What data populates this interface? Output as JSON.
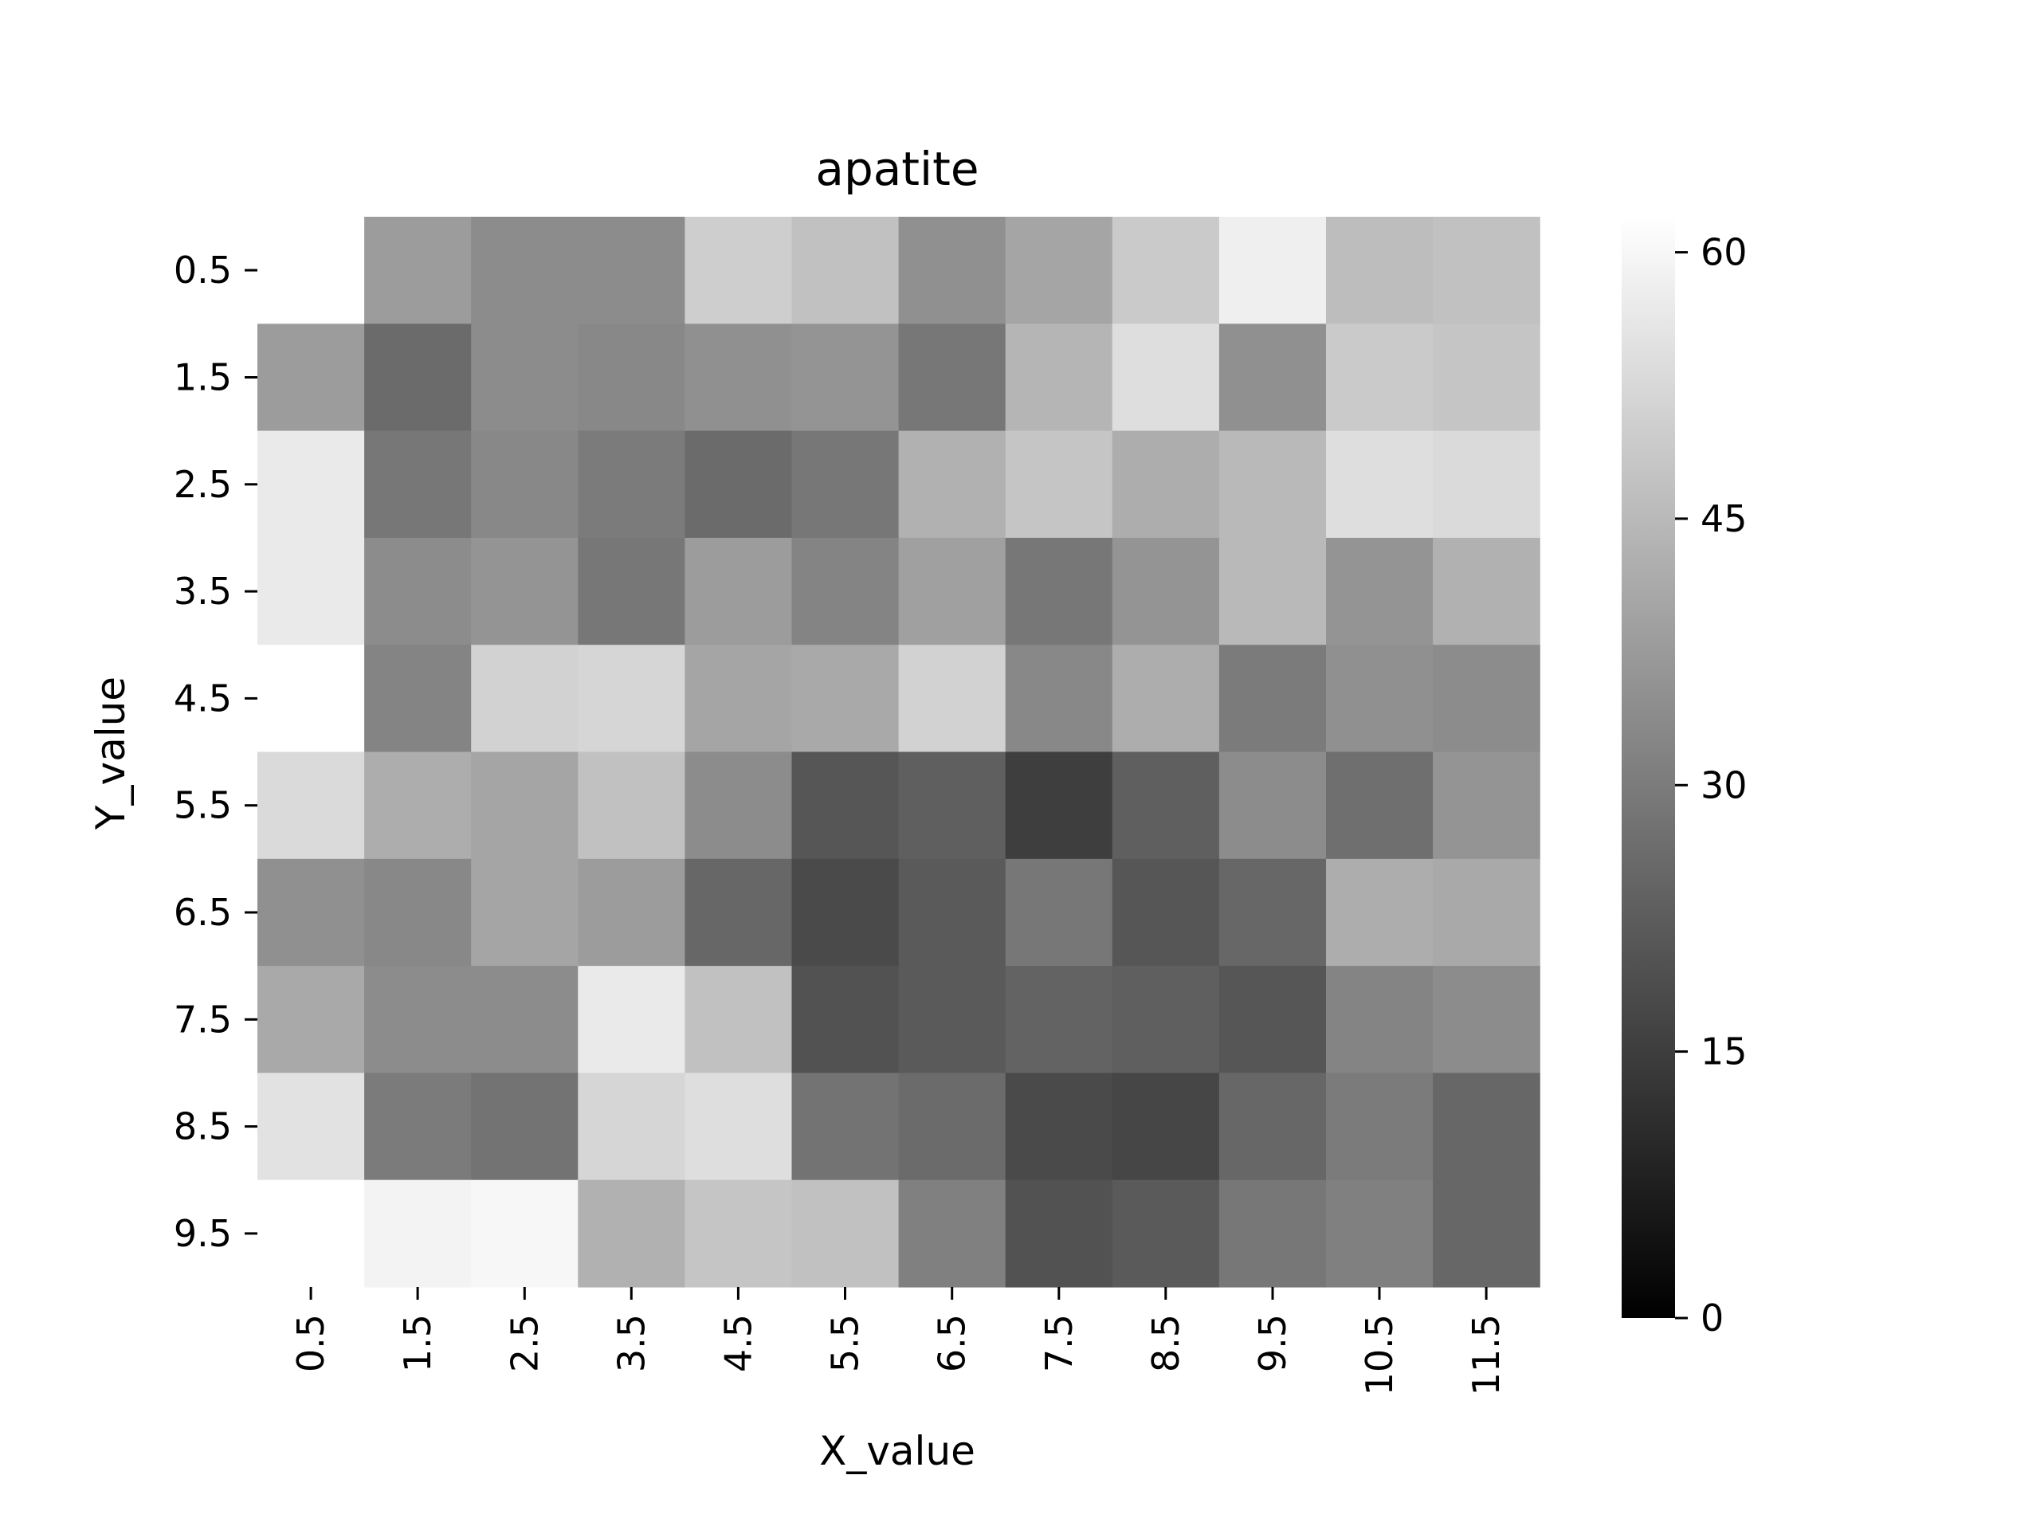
{
  "chart_data": {
    "type": "heatmap",
    "title": "apatite",
    "xlabel": "X_value",
    "ylabel": "Y_value",
    "x_categories": [
      "0.5",
      "1.5",
      "2.5",
      "3.5",
      "4.5",
      "5.5",
      "6.5",
      "7.5",
      "8.5",
      "9.5",
      "10.5",
      "11.5"
    ],
    "y_categories": [
      "0.5",
      "1.5",
      "2.5",
      "3.5",
      "4.5",
      "5.5",
      "6.5",
      "7.5",
      "8.5",
      "9.5"
    ],
    "values": [
      [
        62,
        38,
        34,
        34,
        50,
        47,
        35,
        40,
        49,
        58,
        46,
        47
      ],
      [
        38,
        26,
        34,
        33,
        35,
        36,
        29,
        44,
        54,
        35,
        49,
        48
      ],
      [
        57,
        29,
        33,
        30,
        26,
        29,
        43,
        48,
        42,
        45,
        54,
        53
      ],
      [
        57,
        34,
        36,
        29,
        38,
        32,
        39,
        29,
        36,
        45,
        36,
        43
      ],
      [
        62,
        32,
        51,
        52,
        40,
        41,
        51,
        33,
        42,
        30,
        35,
        34
      ],
      [
        53,
        42,
        40,
        47,
        34,
        21,
        23,
        15,
        23,
        34,
        27,
        36
      ],
      [
        35,
        33,
        40,
        38,
        25,
        18,
        22,
        29,
        21,
        25,
        42,
        41
      ],
      [
        41,
        34,
        34,
        57,
        47,
        20,
        22,
        24,
        23,
        21,
        32,
        34
      ],
      [
        55,
        30,
        28,
        52,
        54,
        28,
        26,
        18,
        17,
        25,
        30,
        25
      ],
      [
        62,
        59,
        60,
        43,
        48,
        47,
        31,
        20,
        22,
        29,
        31,
        25
      ]
    ],
    "colorbar": {
      "min": 0,
      "max": 62,
      "ticks": [
        0,
        15,
        30,
        45,
        60
      ],
      "colormap": "gray",
      "low_color": "#000000",
      "high_color": "#ffffff"
    },
    "grid": false,
    "legend": "colorbar-right"
  }
}
